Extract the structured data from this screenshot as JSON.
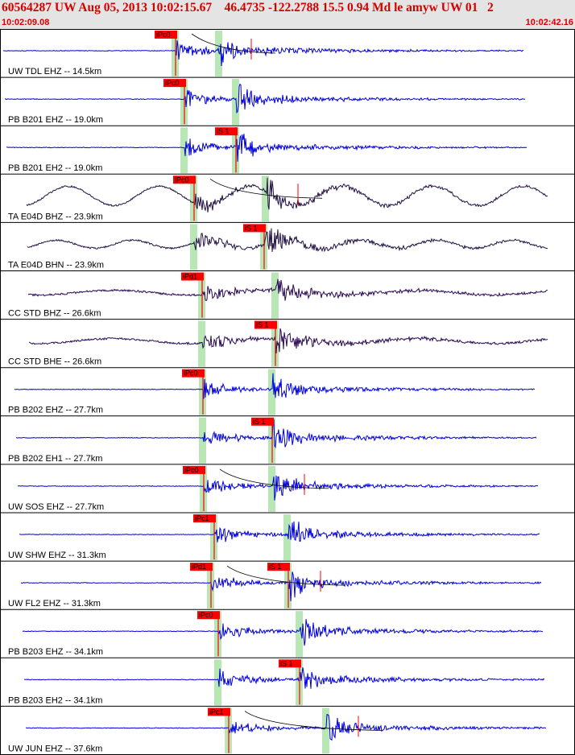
{
  "header": {
    "title": "60564287 UW Aug 05, 2013 10:02:15.67    46.4735 -122.2788 15.5 0.94 Md le amyw UW 01   2",
    "start_time": "10:02:09.08",
    "end_time": "10:02:42.16"
  },
  "colors": {
    "short_period": "#0000dd",
    "broadband": "#2a0a55",
    "long_period": "#221144",
    "pick_box": "#ff0000",
    "highlight": "#b8e6b4",
    "header_bg": "#e4e4e4"
  },
  "traces": [
    {
      "label": "UW TDL EHZ -- 14.5km",
      "picks": [
        {
          "label": "iPc0",
          "kind": "P"
        }
      ],
      "type": "sp",
      "p": 218,
      "s": 272,
      "coda": true
    },
    {
      "label": "PB B201 EHZ -- 19.0km",
      "picks": [
        {
          "label": "iPc0",
          "kind": "P"
        }
      ],
      "type": "sp",
      "p": 229,
      "s": 293
    },
    {
      "label": "PB B201 EH2 -- 19.0km",
      "picks": [
        {
          "label": "iS 1",
          "kind": "S"
        }
      ],
      "type": "sp",
      "p": 229,
      "s": 293
    },
    {
      "label": "TA E04D BHZ -- 23.9km",
      "picks": [
        {
          "label": "iPc0",
          "kind": "P"
        }
      ],
      "type": "lp",
      "p": 241,
      "s": 330,
      "coda": true
    },
    {
      "label": "TA E04D BHN -- 23.9km",
      "picks": [
        {
          "label": "iS 1",
          "kind": "S"
        }
      ],
      "type": "lp2",
      "p": 241,
      "s": 328
    },
    {
      "label": "CC STD BHZ -- 26.6km",
      "picks": [
        {
          "label": "iPd1",
          "kind": "P"
        }
      ],
      "type": "bb",
      "p": 251,
      "s": 342
    },
    {
      "label": "CC STD BHE -- 26.6km",
      "picks": [
        {
          "label": "iS 1",
          "kind": "S"
        }
      ],
      "type": "bb",
      "p": 251,
      "s": 342
    },
    {
      "label": "PB B202 EHZ -- 27.7km",
      "picks": [
        {
          "label": "iPc0",
          "kind": "P"
        }
      ],
      "type": "sp",
      "p": 252,
      "s": 338
    },
    {
      "label": "PB B202 EH1 -- 27.7km",
      "picks": [
        {
          "label": "iS 1",
          "kind": "S"
        }
      ],
      "type": "sp",
      "p": 252,
      "s": 338
    },
    {
      "label": "UW SOS EHZ -- 27.7km",
      "picks": [
        {
          "label": "iPc0",
          "kind": "P"
        }
      ],
      "type": "sp",
      "p": 253,
      "s": 338,
      "coda": true
    },
    {
      "label": "UW SHW EHZ -- 31.3km",
      "picks": [
        {
          "label": "iPc1",
          "kind": "P"
        }
      ],
      "type": "sp",
      "p": 266,
      "s": 357
    },
    {
      "label": "UW FL2 EHZ -- 31.3km",
      "picks": [
        {
          "label": "iPd1",
          "kind": "P"
        },
        {
          "label": "iS 1",
          "kind": "S"
        }
      ],
      "type": "sp",
      "p": 262,
      "s": 358,
      "coda": true
    },
    {
      "label": "PB B203 EHZ -- 34.1km",
      "picks": [
        {
          "label": "iPc0",
          "kind": "P"
        }
      ],
      "type": "sp",
      "p": 271,
      "s": 372
    },
    {
      "label": "PB B203 EH2 -- 34.1km",
      "picks": [
        {
          "label": "iS 1",
          "kind": "S"
        }
      ],
      "type": "sp",
      "p": 271,
      "s": 372
    },
    {
      "label": "UW JUN EHZ -- 37.6km",
      "picks": [
        {
          "label": "iPc1",
          "kind": "P"
        }
      ],
      "type": "sp",
      "p": 284,
      "s": 405,
      "coda": true
    }
  ]
}
